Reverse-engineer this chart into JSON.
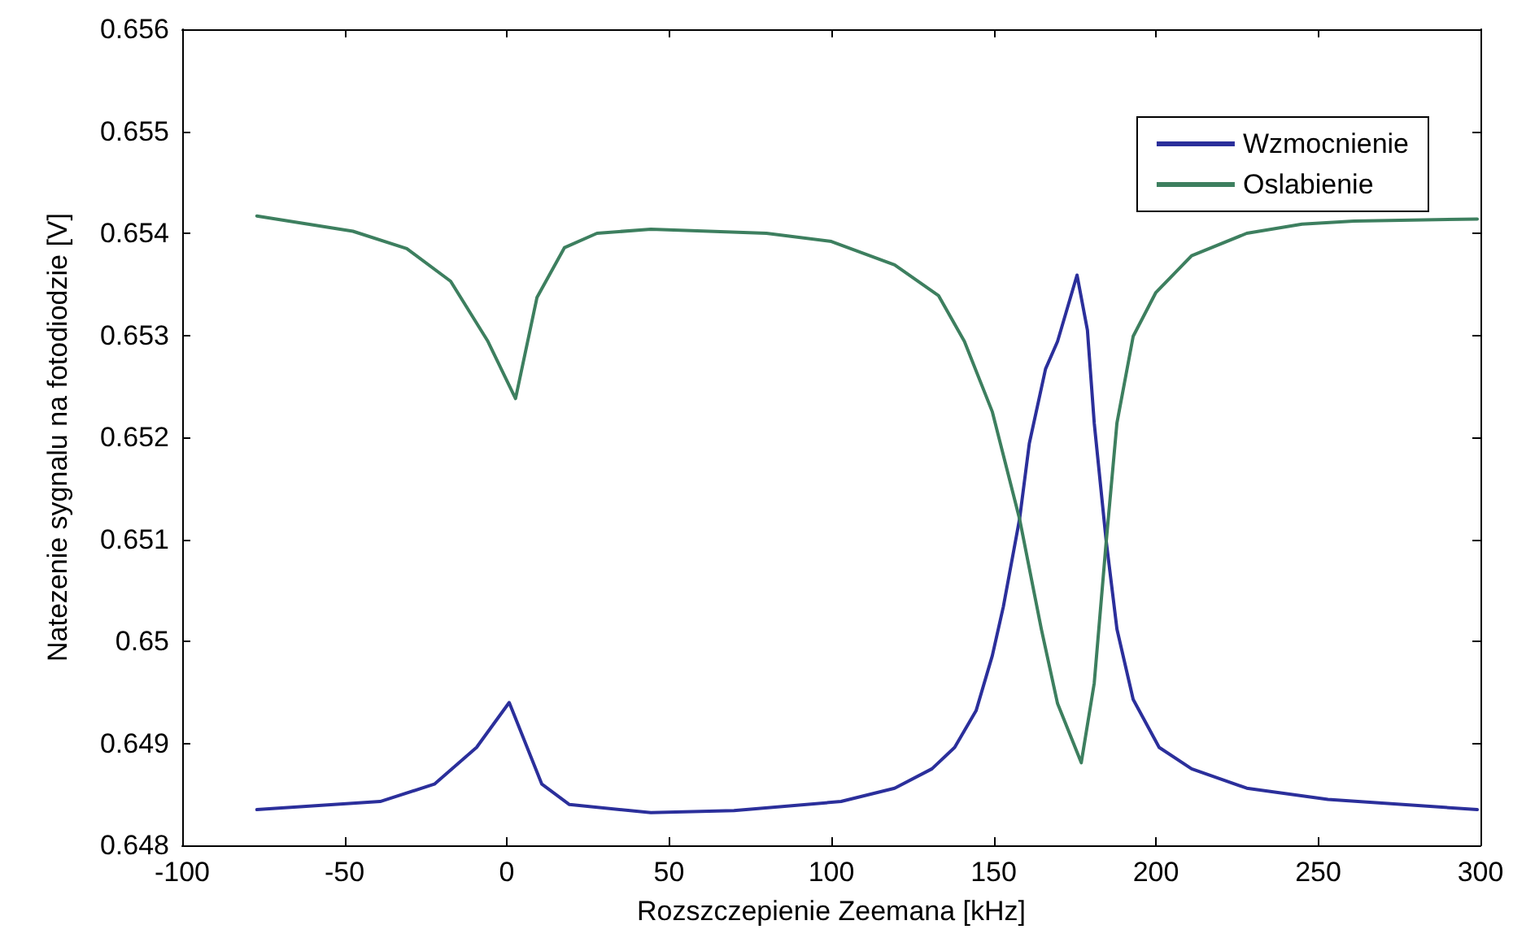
{
  "chart_data": {
    "type": "line",
    "xlabel": "Rozszczepienie Zeemana [kHz]",
    "ylabel": "Natezenie sygnalu na fotodiodzie [V]",
    "xlim": [
      -100,
      300
    ],
    "xticks": [
      -100,
      -50,
      0,
      50,
      100,
      150,
      200,
      250,
      300
    ],
    "ylim": [
      0.648,
      0.656
    ],
    "yticks": [
      0.648,
      0.649,
      0.65,
      0.651,
      0.652,
      0.653,
      0.654,
      0.655,
      0.656
    ],
    "grid": false,
    "legend": "top right",
    "marker": "none",
    "line_style": "solid",
    "series": [
      {
        "name": "Wzmocnienie",
        "color": "#2b2f9b",
        "x": [
          -77,
          -39,
          -22.3,
          -9.3,
          0.75,
          10.8,
          19.3,
          44.4,
          70,
          103,
          119.5,
          131,
          138,
          144.6,
          149.6,
          153,
          158,
          161,
          166,
          169.7,
          175.7,
          178.9,
          181,
          184.7,
          188,
          193,
          201,
          211,
          228,
          253,
          299
        ],
        "values": [
          0.64835,
          0.64843,
          0.6486,
          0.64896,
          0.6494,
          0.6486,
          0.6484,
          0.64832,
          0.64834,
          0.64843,
          0.64856,
          0.64875,
          0.64896,
          0.64932,
          0.64986,
          0.65034,
          0.6512,
          0.65194,
          0.65267,
          0.65294,
          0.65359,
          0.65305,
          0.65214,
          0.65098,
          0.65012,
          0.64943,
          0.64896,
          0.64875,
          0.64856,
          0.64845,
          0.64835
        ]
      },
      {
        "name": "Oslabienie",
        "color": "#3d7f5f",
        "x": [
          -77,
          -47.4,
          -30.8,
          -17.3,
          -5.8,
          2.7,
          9.3,
          17.8,
          27.8,
          44.4,
          80,
          100,
          119.5,
          133,
          141,
          149.6,
          158,
          164.7,
          169.7,
          177,
          181,
          184.7,
          188,
          193,
          200,
          211,
          228,
          245,
          261,
          299
        ],
        "values": [
          0.65417,
          0.65402,
          0.65385,
          0.65353,
          0.65294,
          0.65238,
          0.65337,
          0.65386,
          0.654,
          0.65404,
          0.654,
          0.65392,
          0.65369,
          0.65339,
          0.65294,
          0.65225,
          0.6512,
          0.65012,
          0.64939,
          0.64881,
          0.64959,
          0.65098,
          0.65214,
          0.65299,
          0.65342,
          0.65378,
          0.654,
          0.65409,
          0.65412,
          0.65414
        ]
      }
    ]
  }
}
